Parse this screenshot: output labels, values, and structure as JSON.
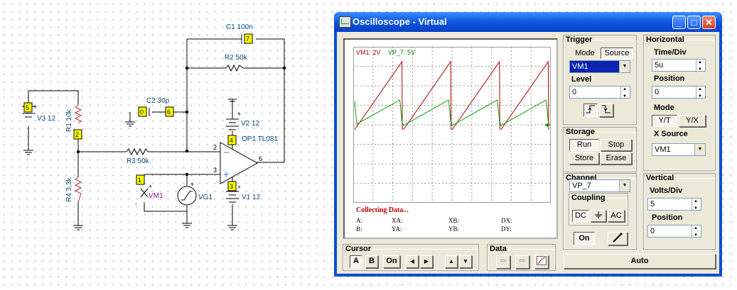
{
  "window": {
    "title": "Oscilloscope - Virtual",
    "min": "_",
    "max": "□",
    "close": "✕"
  },
  "screen": {
    "label_vm1": "VM1: 2V",
    "label_vp7": "VP_7: 5V",
    "status": "Collecting Data...",
    "cursors": {
      "a": "A:",
      "b": "B:",
      "xa": "XA:",
      "ya": "YA:",
      "xb": "XB:",
      "yb": "YB:",
      "dx": "DX:",
      "dy": "DY:"
    }
  },
  "trigger": {
    "title": "Trigger",
    "mode": "Mode",
    "source": "Source",
    "source_value": "VM1",
    "level_label": "Level",
    "level_value": "0"
  },
  "horizontal": {
    "title": "Horizontal",
    "timediv_label": "Time/Div",
    "timediv_value": "5u",
    "position_label": "Position",
    "position_value": "0",
    "mode_label": "Mode",
    "yt": "Y/T",
    "yx": "Y/X",
    "xsource_label": "X Source",
    "xsource_value": "VM1"
  },
  "storage": {
    "title": "Storage",
    "run": "Run",
    "stop": "Stop",
    "store": "Store",
    "erase": "Erase"
  },
  "channel": {
    "title": "Channel",
    "value": "VP_7",
    "coupling": "Coupling",
    "dc": "DC",
    "ac": "AC",
    "on": "On"
  },
  "vertical": {
    "title": "Vertical",
    "voltsdiv_label": "Volts/Div",
    "voltsdiv_value": "5",
    "position_label": "Position",
    "position_value": "0"
  },
  "cursor": {
    "title": "Cursor",
    "a": "A",
    "b": "B",
    "on": "On",
    "left": "◀",
    "right": "▶",
    "up": "▲",
    "down": "▼"
  },
  "data": {
    "title": "Data"
  },
  "auto": "Auto",
  "schematic": {
    "c1": "C1 100n",
    "r2": "R2 50k",
    "c2": "C2 30p",
    "v2": "V2 12",
    "op1": "OP1 TL081",
    "r3": "R3 50k",
    "r1": "R1 10k",
    "v3": "V3 12",
    "r4": "R4 3,3k",
    "vm1": "VM1",
    "vg1": "VG1",
    "v1": "V1 12",
    "n5": "5",
    "n7": "7",
    "n0": "0",
    "n6": "6",
    "n4": "4",
    "n2": "2",
    "n1": "1",
    "n3": "3",
    "p2": "2",
    "p3": "3",
    "p6": "6",
    "plus": "+",
    "minus": "-"
  }
}
